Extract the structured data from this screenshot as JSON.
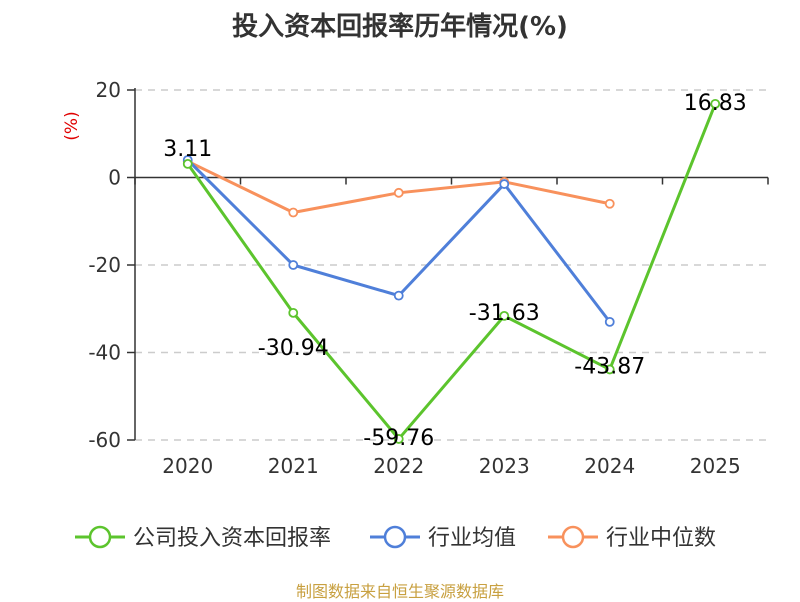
{
  "chart_data": {
    "type": "line",
    "title": "投入资本回报率历年情况(%)",
    "ylabel": "(%)",
    "categories": [
      "2020",
      "2021",
      "2022",
      "2023",
      "2024",
      "2025"
    ],
    "ylim": [
      -60,
      20
    ],
    "yticks": [
      20,
      0,
      -20,
      -40,
      -60
    ],
    "grid": true,
    "legend_position": "bottom",
    "series": [
      {
        "name": "公司投入资本回报率",
        "color": "#5cc42d",
        "values": [
          3.11,
          -30.94,
          -59.76,
          -31.63,
          -43.87,
          16.83
        ],
        "labels": [
          "3.11",
          "-30.94",
          "-59.76",
          "-31.63",
          "-43.87",
          "16.83"
        ]
      },
      {
        "name": "行业均值",
        "color": "#4f7fd9",
        "values": [
          4.0,
          -20.0,
          -27.0,
          -1.5,
          -33.0,
          null
        ]
      },
      {
        "name": "行业中位数",
        "color": "#f8915c",
        "values": [
          3.7,
          -8.0,
          -3.5,
          -1.0,
          -6.0,
          null
        ]
      }
    ]
  },
  "source": "制图数据来自恒生聚源数据库"
}
